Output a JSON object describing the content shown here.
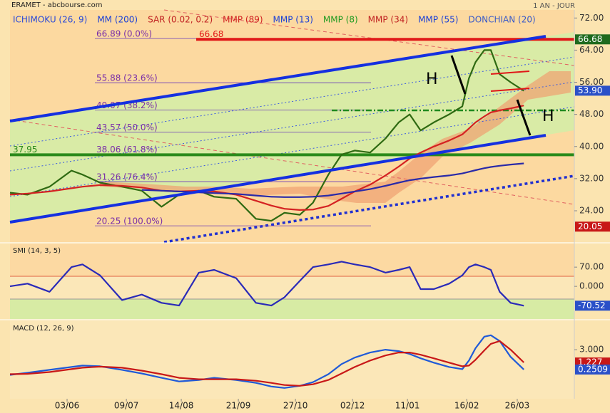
{
  "chart_data": [
    {
      "type": "line",
      "title": "ERAMET - abcbourse.com",
      "subtitle": "1 AN - JOUR",
      "legend_items": [
        {
          "name": "ICHIMOKU (26, 9)",
          "color": "#2b4bd8"
        },
        {
          "name": "MM (200)",
          "color": "#1a3fd6"
        },
        {
          "name": "SAR (0.02, 0.2)",
          "color": "#c02020"
        },
        {
          "name": "MMP (89)",
          "color": "#d02020"
        },
        {
          "name": "MMP (13)",
          "color": "#1a3fd6"
        },
        {
          "name": "MMP (8)",
          "color": "#1f9a1f"
        },
        {
          "name": "MMP (34)",
          "color": "#c02020"
        },
        {
          "name": "MMP (55)",
          "color": "#1a3fd6"
        },
        {
          "name": "DONCHIAN (20)",
          "color": "#3a5ac8"
        }
      ],
      "x": [
        0,
        8,
        18,
        28,
        33,
        41,
        51,
        60,
        69,
        77,
        86,
        93,
        103,
        112,
        119,
        125,
        132,
        138,
        145,
        151,
        157,
        164,
        171,
        177,
        182,
        187,
        193,
        200,
        206,
        209,
        212,
        216,
        219,
        223,
        228,
        234
      ],
      "xlim": [
        0,
        257
      ],
      "ylim": [
        16.2,
        74
      ],
      "yticks": [
        {
          "value": 72,
          "label": "72.00"
        },
        {
          "value": 64,
          "label": "64.00"
        },
        {
          "value": 56,
          "label": "56.00"
        },
        {
          "value": 48,
          "label": "48.00"
        },
        {
          "value": 40,
          "label": "40.00"
        },
        {
          "value": 32,
          "label": "32.00"
        },
        {
          "value": 24,
          "label": "24.00"
        }
      ],
      "series": [
        {
          "color": "#2f6a12",
          "values": [
            28.5,
            28,
            30,
            34,
            33,
            31,
            30,
            29,
            25,
            28,
            29,
            27.5,
            27,
            22,
            21.5,
            23.5,
            23,
            26,
            33,
            38,
            39,
            38.5,
            42,
            46,
            48,
            44,
            46,
            48,
            50,
            57,
            61,
            64,
            64,
            58,
            56,
            53.9
          ]
        },
        {
          "color": "#d42222",
          "values": [
            28,
            28.3,
            28.8,
            29.6,
            30,
            30.4,
            30.2,
            29.8,
            29,
            28.8,
            29,
            28.8,
            28,
            26.5,
            25.3,
            24.5,
            24.2,
            24.3,
            25.2,
            27,
            28.8,
            30.5,
            32.8,
            35,
            37,
            38.5,
            40,
            41.5,
            43,
            44.5,
            46,
            47.5,
            48.5,
            49,
            49.5,
            50.2
          ]
        },
        {
          "color": "#2a2aa8",
          "values": [
            null,
            null,
            null,
            null,
            null,
            null,
            null,
            29.2,
            29,
            28.8,
            28.6,
            28.4,
            28.2,
            27.8,
            27.5,
            27.4,
            27.4,
            27.5,
            27.8,
            28.3,
            28.8,
            29.4,
            30.2,
            31,
            31.6,
            32,
            32.4,
            32.8,
            33.3,
            33.7,
            34.1,
            34.6,
            34.9,
            35.2,
            35.5,
            35.8
          ]
        }
      ],
      "fib_levels": [
        {
          "value": 66.89,
          "label": "66.89  (0.0%)"
        },
        {
          "value": 55.88,
          "label": "55.88  (23.6%)"
        },
        {
          "value": 49.07,
          "label": "49.07  (38.2%)"
        },
        {
          "value": 43.57,
          "label": "43.57  (50.0%)"
        },
        {
          "value": 38.06,
          "label": "38.06  (61.8%)"
        },
        {
          "value": 31.26,
          "label": "31.26  (76.4%)"
        },
        {
          "value": 20.25,
          "label": "20.25  (100.0%)"
        }
      ],
      "hlines": [
        {
          "value": 66.68,
          "label": "66.68",
          "color": "#e01818"
        },
        {
          "value": 37.95,
          "label": "37.95",
          "color": "#2a8a1a"
        },
        {
          "value": 49,
          "color": "#1f8a1f",
          "dashed": true
        }
      ],
      "annotations": [
        "H",
        "H"
      ],
      "tags": [
        {
          "value": 66.68,
          "label": "66.68",
          "color": "#1f6b1f"
        },
        {
          "value": 53.9,
          "label": "53.90",
          "color": "#2a50c8"
        },
        {
          "value": 20.05,
          "label": "20.05",
          "color": "#c81818"
        }
      ]
    },
    {
      "type": "line",
      "title": "SMI (14, 3, 5)",
      "x": [
        0,
        8,
        18,
        28,
        33,
        41,
        51,
        60,
        69,
        77,
        86,
        93,
        103,
        112,
        119,
        125,
        132,
        138,
        145,
        151,
        157,
        164,
        171,
        177,
        182,
        187,
        193,
        200,
        206,
        209,
        212,
        216,
        219,
        223,
        228,
        234
      ],
      "xlim": [
        0,
        257
      ],
      "ylim": [
        -119,
        156
      ],
      "yticks": [
        {
          "value": 70,
          "label": "70.00"
        },
        {
          "value": 0,
          "label": "0.000"
        }
      ],
      "series": [
        {
          "color": "#2a2ab8",
          "values": [
            0,
            10,
            -20,
            70,
            80,
            40,
            -50,
            -30,
            -60,
            -70,
            50,
            60,
            30,
            -60,
            -70,
            -40,
            20,
            70,
            80,
            90,
            80,
            70,
            50,
            60,
            70,
            -10,
            -10,
            10,
            40,
            70,
            80,
            70,
            60,
            -20,
            -60,
            -70.52
          ]
        }
      ],
      "tags": [
        {
          "value": -70.52,
          "label": "-70.52",
          "color": "#2a50c8"
        }
      ]
    },
    {
      "type": "line",
      "title": "MACD (12, 26, 9)",
      "x": [
        0,
        8,
        18,
        28,
        33,
        41,
        51,
        60,
        69,
        77,
        86,
        93,
        103,
        112,
        119,
        125,
        132,
        138,
        145,
        151,
        157,
        164,
        171,
        177,
        182,
        187,
        193,
        200,
        206,
        209,
        212,
        216,
        219,
        223,
        228,
        234
      ],
      "xlim": [
        0,
        257
      ],
      "ylim": [
        -3.8,
        7.05
      ],
      "yticks": [
        {
          "value": 3,
          "label": "3.000"
        }
      ],
      "xticks": [
        {
          "value": 26,
          "label": "03/06"
        },
        {
          "value": 53,
          "label": "09/07"
        },
        {
          "value": 78,
          "label": "14/08"
        },
        {
          "value": 104,
          "label": "21/09"
        },
        {
          "value": 130,
          "label": "27/10"
        },
        {
          "value": 156,
          "label": "02/12"
        },
        {
          "value": 181,
          "label": "11/01"
        },
        {
          "value": 208,
          "label": "16/02"
        },
        {
          "value": 231,
          "label": "26/03"
        }
      ],
      "series": [
        {
          "color": "#1f5ad8",
          "values": [
            -0.5,
            -0.2,
            0.2,
            0.6,
            0.8,
            0.7,
            0.2,
            -0.3,
            -0.9,
            -1.4,
            -1.2,
            -0.9,
            -1.2,
            -1.6,
            -2.1,
            -2.3,
            -2.0,
            -1.5,
            -0.4,
            1.0,
            1.9,
            2.6,
            3.0,
            2.8,
            2.4,
            1.8,
            1.2,
            0.6,
            0.3,
            1.5,
            3.2,
            4.8,
            5.0,
            4.2,
            2.0,
            0.2509
          ]
        },
        {
          "color": "#c81818",
          "values": [
            -0.4,
            -0.35,
            -0.1,
            0.3,
            0.5,
            0.65,
            0.5,
            0.1,
            -0.4,
            -0.9,
            -1.1,
            -1.1,
            -1.1,
            -1.3,
            -1.6,
            -1.9,
            -2.0,
            -1.8,
            -1.2,
            -0.3,
            0.6,
            1.5,
            2.2,
            2.6,
            2.6,
            2.3,
            1.8,
            1.2,
            0.7,
            0.8,
            1.6,
            2.9,
            3.8,
            4.2,
            3.0,
            1.227
          ]
        }
      ],
      "tags": [
        {
          "value": 1.227,
          "label": "1.227",
          "color": "#c81818"
        },
        {
          "value": 0.2509,
          "label": "0.2509",
          "color": "#2a50c8"
        }
      ]
    }
  ]
}
